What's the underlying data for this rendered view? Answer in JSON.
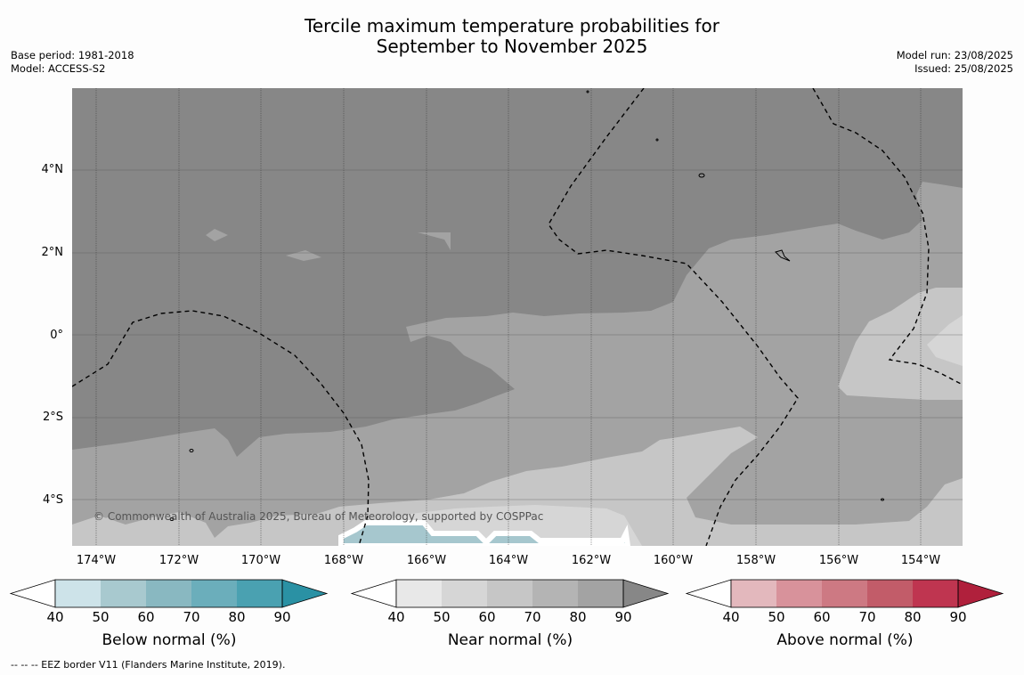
{
  "title": {
    "line1": "Tercile maximum temperature probabilities for",
    "line2": "September to November 2025"
  },
  "meta_left": {
    "base_period": "Base period: 1981-2018",
    "model": "Model: ACCESS-S2"
  },
  "meta_right": {
    "model_run": "Model run: 23/08/2025",
    "issued": "Issued: 25/08/2025"
  },
  "map": {
    "copyright": "© Commonwealth of Australia 2025, Bureau of Meteorology, supported by COSPPac",
    "lat_labels": [
      "4°N",
      "2°N",
      "0°",
      "2°S",
      "4°S"
    ],
    "lon_labels": [
      "174°W",
      "172°W",
      "170°W",
      "168°W",
      "166°W",
      "164°W",
      "162°W",
      "160°W",
      "158°W",
      "156°W",
      "154°W"
    ],
    "colors": {
      "near_40": "#c6c6c6",
      "near_50": "#a3a3a3",
      "near_60": "#878787",
      "near_low": "#d6d6d6",
      "below_50": "#a6c7ce",
      "eez_line": "#000000"
    }
  },
  "colorbars": [
    {
      "id": "below",
      "title": "Below normal (%)",
      "ticks": [
        "40",
        "50",
        "60",
        "70",
        "80",
        "90"
      ],
      "colors": [
        "#ffffff",
        "#cde3e9",
        "#a8c9cf",
        "#89b8c1",
        "#6baebb",
        "#4aa1b1",
        "#2a91a4"
      ]
    },
    {
      "id": "near",
      "title": "Near normal (%)",
      "ticks": [
        "40",
        "50",
        "60",
        "70",
        "80",
        "90"
      ],
      "colors": [
        "#ffffff",
        "#e8e8e8",
        "#d6d6d6",
        "#c6c6c6",
        "#b4b4b4",
        "#a3a3a3",
        "#878787"
      ]
    },
    {
      "id": "above",
      "title": "Above normal (%)",
      "ticks": [
        "40",
        "50",
        "60",
        "70",
        "80",
        "90"
      ],
      "colors": [
        "#ffffff",
        "#e3b8bd",
        "#d8929b",
        "#cd7983",
        "#c25c69",
        "#bf3550",
        "#b0203c"
      ]
    }
  ],
  "footnote": "--  --  -- EEZ border V11 (Flanders Marine Institute, 2019)."
}
